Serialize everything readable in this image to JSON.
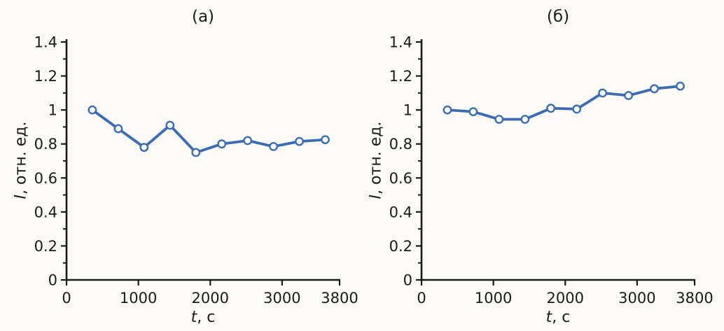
{
  "figure": {
    "background": "#fbfaf6",
    "axis_color": "#1a1a1a",
    "text_color": "#1a1a1a",
    "accent": "#3b6bb3"
  },
  "chart_data": [
    {
      "type": "line",
      "title": "(а)",
      "xlabel": "t, с",
      "xlabel_var": "t",
      "xlabel_rest": ", с",
      "ylabel": "I, отн. ед.",
      "ylabel_var": "I",
      "ylabel_rest": ", отн. ед.",
      "xlim": [
        0,
        3800
      ],
      "ylim": [
        0,
        1.4
      ],
      "xticks": [
        0,
        1000,
        2000,
        3000,
        3800
      ],
      "xtick_labels": [
        "0",
        "1000",
        "2000",
        "3000",
        "3800"
      ],
      "yticks": [
        0,
        0.2,
        0.4,
        0.6,
        0.8,
        1,
        1.2,
        1.4
      ],
      "ytick_labels": [
        "0",
        "0.2",
        "0.4",
        "0.6",
        "0.8",
        "1",
        "1.2",
        "1.4"
      ],
      "yticks_minor": [
        0.1,
        0.3,
        0.5,
        0.7,
        0.9,
        1.1,
        1.3
      ],
      "grid": false,
      "legend": null,
      "line_color": "#3b6bb3",
      "marker": "open-circle",
      "marker_fill": "#ffffff",
      "x": [
        360,
        720,
        1080,
        1440,
        1800,
        2160,
        2520,
        2880,
        3240,
        3600
      ],
      "y": [
        1.0,
        0.89,
        0.78,
        0.91,
        0.75,
        0.8,
        0.82,
        0.785,
        0.815,
        0.825
      ]
    },
    {
      "type": "line",
      "title": "(б)",
      "xlabel": "t, с",
      "xlabel_var": "t",
      "xlabel_rest": ", с",
      "ylabel": "I, отн. ед.",
      "ylabel_var": "I",
      "ylabel_rest": ", отн. ед.",
      "xlim": [
        0,
        3800
      ],
      "ylim": [
        0,
        1.4
      ],
      "xticks": [
        0,
        1000,
        2000,
        3000,
        3800
      ],
      "xtick_labels": [
        "0",
        "1000",
        "2000",
        "3000",
        "3800"
      ],
      "yticks": [
        0,
        0.2,
        0.4,
        0.6,
        0.8,
        1,
        1.2,
        1.4
      ],
      "ytick_labels": [
        "0",
        "0.2",
        "0.4",
        "0.6",
        "0.8",
        "1",
        "1.2",
        "1.4"
      ],
      "yticks_minor": [
        0.1,
        0.3,
        0.5,
        0.7,
        0.9,
        1.1,
        1.3
      ],
      "grid": false,
      "legend": null,
      "line_color": "#3b6bb3",
      "marker": "open-circle",
      "marker_fill": "#ffffff",
      "x": [
        360,
        720,
        1080,
        1440,
        1800,
        2160,
        2520,
        2880,
        3240,
        3600
      ],
      "y": [
        1.0,
        0.99,
        0.945,
        0.945,
        1.01,
        1.005,
        1.1,
        1.085,
        1.125,
        1.14
      ]
    }
  ]
}
